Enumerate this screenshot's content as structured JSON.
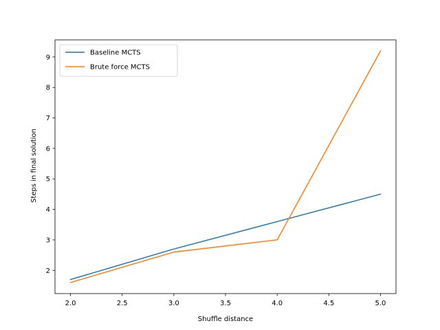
{
  "chart_data": {
    "type": "line",
    "title": "",
    "xlabel": "Shuffle distance",
    "ylabel": "Steps in final solution",
    "xlim": [
      1.85,
      5.15
    ],
    "ylim": [
      1.24,
      9.56
    ],
    "xticks": [
      2.0,
      2.5,
      3.0,
      3.5,
      4.0,
      4.5,
      5.0
    ],
    "xtick_labels": [
      "2.0",
      "2.5",
      "3.0",
      "3.5",
      "4.0",
      "4.5",
      "5.0"
    ],
    "yticks": [
      2,
      3,
      4,
      5,
      6,
      7,
      8,
      9
    ],
    "ytick_labels": [
      "2",
      "3",
      "4",
      "5",
      "6",
      "7",
      "8",
      "9"
    ],
    "grid": false,
    "legend_position": "top-left",
    "series": [
      {
        "name": "Baseline MCTS",
        "color": "#1f77b4",
        "x": [
          2,
          3,
          4,
          5
        ],
        "y": [
          1.7,
          2.7,
          3.6,
          4.5
        ]
      },
      {
        "name": "Brute force MCTS",
        "color": "#ff7f0e",
        "x": [
          2,
          3,
          4,
          5
        ],
        "y": [
          1.6,
          2.6,
          3.0,
          9.2
        ]
      }
    ]
  }
}
